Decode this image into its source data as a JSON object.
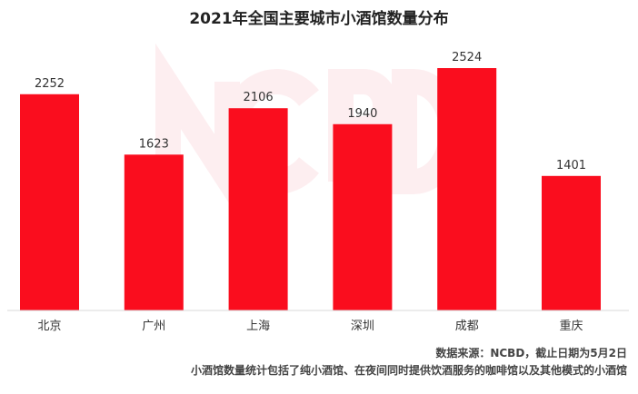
{
  "chart_data": {
    "type": "bar",
    "title": "2021年全国主要城市小酒馆数量分布",
    "categories": [
      "北京",
      "广州",
      "上海",
      "深圳",
      "成都",
      "重庆"
    ],
    "values": [
      2252,
      1623,
      2106,
      1940,
      2524,
      1401
    ],
    "xlabel": "",
    "ylabel": "",
    "ylim": [
      0,
      2524
    ],
    "grid": false,
    "legend": "none",
    "bar_color": "#FA0D1E"
  },
  "watermark": "NCBD",
  "notes": {
    "source": "数据来源：NCBD，截止日期为5月2日",
    "description": "小酒馆数量统计包括了纯小酒馆、在夜间同时提供饮酒服务的咖啡馆以及其他模式的小酒馆"
  }
}
